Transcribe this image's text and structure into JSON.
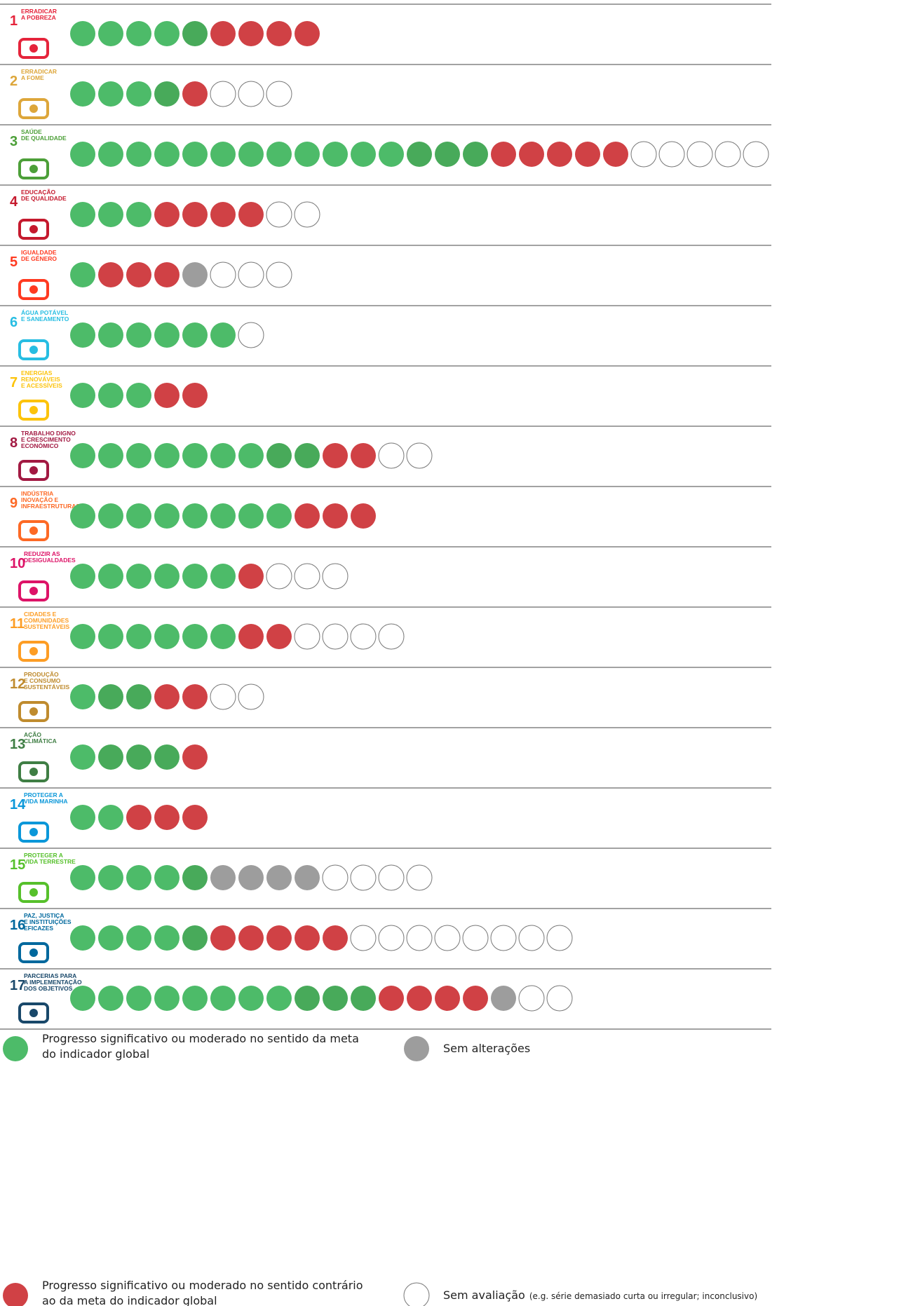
{
  "palette": {
    "green": "#4dbb69",
    "green-dark": "#48aa5a",
    "red": "#d04145",
    "gray": "#9d9d9d",
    "none": "#ffffff"
  },
  "goals": [
    {
      "number": "1",
      "label": [
        "ERRADICAR",
        "A POBREZA"
      ],
      "color": "#e5243b",
      "dots": [
        "green",
        "green",
        "green",
        "green",
        "green-dark",
        "red",
        "red",
        "red",
        "red"
      ]
    },
    {
      "number": "2",
      "label": [
        "ERRADICAR",
        "A FOME"
      ],
      "color": "#dda63a",
      "dots": [
        "green",
        "green",
        "green",
        "green-dark",
        "red",
        "none",
        "none",
        "none"
      ]
    },
    {
      "number": "3",
      "label": [
        "SAÚDE",
        "DE QUALIDADE"
      ],
      "color": "#4c9f38",
      "dots": [
        "green",
        "green",
        "green",
        "green",
        "green",
        "green",
        "green",
        "green",
        "green",
        "green",
        "green",
        "green",
        "green-dark",
        "green-dark",
        "green-dark",
        "red",
        "red",
        "red",
        "red",
        "red",
        "none",
        "none",
        "none",
        "none",
        "none"
      ]
    },
    {
      "number": "4",
      "label": [
        "EDUCAÇÃO",
        "DE QUALIDADE"
      ],
      "color": "#c5192d",
      "dots": [
        "green",
        "green",
        "green",
        "red",
        "red",
        "red",
        "red",
        "none",
        "none"
      ]
    },
    {
      "number": "5",
      "label": [
        "IGUALDADE",
        "DE GÉNERO"
      ],
      "color": "#ff3a21",
      "dots": [
        "green",
        "red",
        "red",
        "red",
        "gray",
        "none",
        "none",
        "none"
      ]
    },
    {
      "number": "6",
      "label": [
        "ÁGUA POTÁVEL",
        "E SANEAMENTO"
      ],
      "color": "#26bde2",
      "dots": [
        "green",
        "green",
        "green",
        "green",
        "green",
        "green",
        "none"
      ]
    },
    {
      "number": "7",
      "label": [
        "ENERGIAS",
        "RENOVÁVEIS",
        "E ACESSÍVEIS"
      ],
      "color": "#fcc30b",
      "dots": [
        "green",
        "green",
        "green",
        "red",
        "red"
      ]
    },
    {
      "number": "8",
      "label": [
        "TRABALHO DIGNO",
        "E CRESCIMENTO",
        "ECONÓMICO"
      ],
      "color": "#a21942",
      "dots": [
        "green",
        "green",
        "green",
        "green",
        "green",
        "green",
        "green",
        "green-dark",
        "green-dark",
        "red",
        "red",
        "none",
        "none"
      ]
    },
    {
      "number": "9",
      "label": [
        "INDÚSTRIA",
        "INOVAÇÃO E",
        "INFRAESTRUTURAS"
      ],
      "color": "#fd6925",
      "dots": [
        "green",
        "green",
        "green",
        "green",
        "green",
        "green",
        "green",
        "green",
        "red",
        "red",
        "red"
      ]
    },
    {
      "number": "10",
      "label": [
        "REDUZIR AS",
        "DESIGUALDADES"
      ],
      "color": "#dd1367",
      "dots": [
        "green",
        "green",
        "green",
        "green",
        "green",
        "green",
        "red",
        "none",
        "none",
        "none"
      ]
    },
    {
      "number": "11",
      "label": [
        "CIDADES E",
        "COMUNIDADES",
        "SUSTENTÁVEIS"
      ],
      "color": "#fd9d24",
      "dots": [
        "green",
        "green",
        "green",
        "green",
        "green",
        "green",
        "red",
        "red",
        "none",
        "none",
        "none",
        "none"
      ]
    },
    {
      "number": "12",
      "label": [
        "PRODUÇÃO",
        "E CONSUMO",
        "SUSTENTÁVEIS"
      ],
      "color": "#bf8b2e",
      "dots": [
        "green",
        "green-dark",
        "green-dark",
        "red",
        "red",
        "none",
        "none"
      ]
    },
    {
      "number": "13",
      "label": [
        "AÇÃO",
        "CLIMÁTICA"
      ],
      "color": "#3f7e44",
      "dots": [
        "green",
        "green-dark",
        "green-dark",
        "green-dark",
        "red"
      ]
    },
    {
      "number": "14",
      "label": [
        "PROTEGER A",
        "VIDA MARINHA"
      ],
      "color": "#0a97d9",
      "dots": [
        "green",
        "green",
        "red",
        "red",
        "red"
      ]
    },
    {
      "number": "15",
      "label": [
        "PROTEGER A",
        "VIDA TERRESTRE"
      ],
      "color": "#56c02b",
      "dots": [
        "green",
        "green",
        "green",
        "green",
        "green-dark",
        "gray",
        "gray",
        "gray",
        "gray",
        "none",
        "none",
        "none",
        "none"
      ]
    },
    {
      "number": "16",
      "label": [
        "PAZ, JUSTIÇA",
        "E INSTITUIÇÕES",
        "EFICAZES"
      ],
      "color": "#00689d",
      "dots": [
        "green",
        "green",
        "green",
        "green",
        "green-dark",
        "red",
        "red",
        "red",
        "red",
        "red",
        "none",
        "none",
        "none",
        "none",
        "none",
        "none",
        "none",
        "none"
      ]
    },
    {
      "number": "17",
      "label": [
        "PARCERIAS PARA",
        "A IMPLEMENTAÇÃO",
        "DOS OBJETIVOS"
      ],
      "color": "#19486a",
      "dots": [
        "green",
        "green",
        "green",
        "green",
        "green",
        "green",
        "green",
        "green",
        "green-dark",
        "green-dark",
        "green-dark",
        "red",
        "red",
        "red",
        "red",
        "gray",
        "none",
        "none"
      ]
    }
  ],
  "legend": [
    {
      "status": "green",
      "text": [
        "Progresso significativo ou moderado no sentido da meta",
        "do indicador global"
      ]
    },
    {
      "status": "gray",
      "text": [
        "Sem alterações"
      ]
    },
    {
      "status": "red",
      "text": [
        "Progresso significativo ou moderado no sentido contrário",
        "ao da meta do indicador global"
      ]
    },
    {
      "status": "none",
      "text": [
        "Sem avaliação"
      ],
      "note": "(e.g. série demasiado curta ou irregular; inconclusivo)"
    }
  ]
}
